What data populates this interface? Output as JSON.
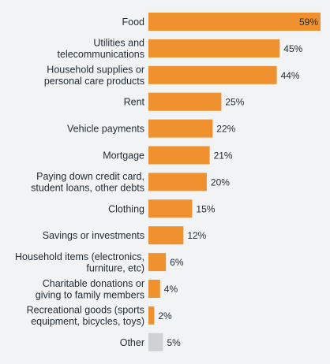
{
  "chart_data": {
    "type": "bar",
    "orientation": "horizontal",
    "categories": [
      [
        "Food"
      ],
      [
        "Utilities and",
        "telecommunications"
      ],
      [
        "Household supplies or",
        "personal care products"
      ],
      [
        "Rent"
      ],
      [
        "Vehicle payments"
      ],
      [
        "Mortgage"
      ],
      [
        "Paying down credit card,",
        "student loans, other debts"
      ],
      [
        "Clothing"
      ],
      [
        "Savings or investments"
      ],
      [
        "Household items (electronics,",
        "furniture, etc)"
      ],
      [
        "Charitable donations or",
        "giving to family members"
      ],
      [
        "Recreational goods (sports",
        "equipment, bicycles, toys)"
      ],
      [
        "Other"
      ]
    ],
    "values": [
      59,
      45,
      44,
      25,
      22,
      21,
      20,
      15,
      12,
      6,
      4,
      2,
      5
    ],
    "value_labels": [
      "59%",
      "45%",
      "44%",
      "25%",
      "22%",
      "21%",
      "20%",
      "15%",
      "12%",
      "6%",
      "4%",
      "2%",
      "5%"
    ],
    "bar_colors": [
      "#f0912f",
      "#f0912f",
      "#f0912f",
      "#f0912f",
      "#f0912f",
      "#f0912f",
      "#f0912f",
      "#f0912f",
      "#f0912f",
      "#f0912f",
      "#f0912f",
      "#f0912f",
      "#cfd2d4"
    ],
    "title": "",
    "xlabel": "",
    "ylabel": "",
    "xlim": [
      0,
      59
    ],
    "grid": false,
    "legend": "none"
  }
}
